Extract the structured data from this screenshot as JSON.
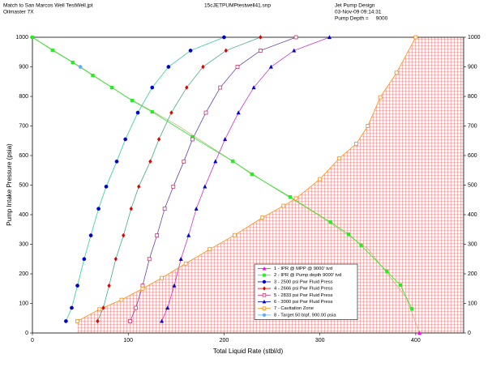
{
  "chart_data": {
    "type": "scatter",
    "header_left": [
      "Match to San Marcos Well TestWell.jpt",
      "Oilmaster 7X"
    ],
    "header_center": "15cJETPUMPtestwell41.snp",
    "header_right": [
      "Jet Pump Design",
      "03-Nov-09 09:14:31",
      "Pump Depth =     9000"
    ],
    "x_label": "Total Liquid Rate (stbl/d)",
    "y_label": "Pump Intake Pressure (psia)",
    "xlim": [
      0,
      450
    ],
    "ylim": [
      0,
      1000
    ],
    "xticks": [
      0,
      100,
      200,
      300,
      400
    ],
    "yticks": [
      0,
      100,
      200,
      300,
      400,
      500,
      600,
      700,
      800,
      900,
      1000
    ],
    "hatched_zone": "Cavitation Zone",
    "series": [
      {
        "name": "1 - IPR @ MPP @ 9000' tvd",
        "color": "#ff00ff",
        "line_color": "#c8b48c",
        "marker": "triangle",
        "x": [
          0,
          50,
          100,
          150,
          200,
          250,
          300,
          350,
          390,
          404
        ],
        "values": [
          1000,
          900,
          795,
          705,
          600,
          495,
          395,
          285,
          120,
          0
        ]
      },
      {
        "name": "2 - IPR @ Pump depth 9000' tvd",
        "color": "#22ee22",
        "line_color": "#22ee22",
        "marker": "square",
        "x": [
          0,
          21,
          42,
          63,
          83,
          104,
          125,
          167,
          209,
          229,
          269,
          311,
          330,
          343,
          370,
          384,
          396
        ],
        "values": [
          1000,
          956,
          915,
          871,
          830,
          786,
          748,
          663,
          581,
          537,
          460,
          375,
          334,
          296,
          208,
          162,
          82
        ]
      },
      {
        "name": "3 - 2500 psi Pwr Fluid Press",
        "color": "#0000cc",
        "line_color": "#33cc99",
        "marker": "circle",
        "x": [
          35,
          41,
          47,
          54,
          61,
          69,
          77,
          88,
          97,
          110,
          125,
          142,
          165,
          200
        ],
        "values": [
          40,
          85,
          160,
          250,
          330,
          420,
          495,
          580,
          655,
          745,
          830,
          900,
          955,
          1000
        ]
      },
      {
        "name": "4 - 2666 psi Pwr Fluid Press",
        "color": "#dd0000",
        "line_color": "#44aa88",
        "marker": "diamond",
        "x": [
          68,
          74,
          80,
          87,
          95,
          103,
          111,
          123,
          132,
          145,
          161,
          178,
          202,
          238
        ],
        "values": [
          40,
          85,
          160,
          250,
          330,
          420,
          495,
          580,
          655,
          745,
          830,
          900,
          955,
          1000
        ]
      },
      {
        "name": "5 - 2833 psi Pwr Fluid Press",
        "color": "#cc3366",
        "line_color": "#6644aa",
        "marker": "square-open",
        "x": [
          102,
          108,
          115,
          122,
          130,
          138,
          147,
          158,
          167,
          181,
          196,
          214,
          238,
          275
        ],
        "values": [
          40,
          85,
          160,
          250,
          330,
          420,
          495,
          580,
          655,
          745,
          830,
          900,
          955,
          1000
        ]
      },
      {
        "name": "6 - 3000 psi Pwr Fluid Press",
        "color": "#0000cc",
        "line_color": "#cc33cc",
        "marker": "triangle",
        "x": [
          135,
          141,
          148,
          155,
          163,
          171,
          180,
          191,
          201,
          215,
          231,
          249,
          273,
          310
        ],
        "values": [
          40,
          85,
          160,
          250,
          330,
          420,
          495,
          580,
          655,
          745,
          830,
          900,
          955,
          1000
        ]
      },
      {
        "name": "7 - Cavitation Zone",
        "color": "#ff8800",
        "line_color": "#ff8800",
        "marker": "square-open",
        "x": [
          47,
          70,
          93,
          115,
          135,
          160,
          185,
          211,
          240,
          262,
          275,
          300,
          320,
          338,
          350,
          363,
          380,
          400
        ],
        "values": [
          40,
          80,
          112,
          150,
          186,
          235,
          283,
          331,
          390,
          430,
          455,
          520,
          590,
          640,
          700,
          797,
          880,
          1000
        ]
      },
      {
        "name": "8 - Target 50 blpf, 900.00 psia",
        "color": "#66aaff",
        "line_color": "#66aaff",
        "marker": "circle",
        "x": [
          50
        ],
        "values": [
          900
        ]
      }
    ]
  }
}
